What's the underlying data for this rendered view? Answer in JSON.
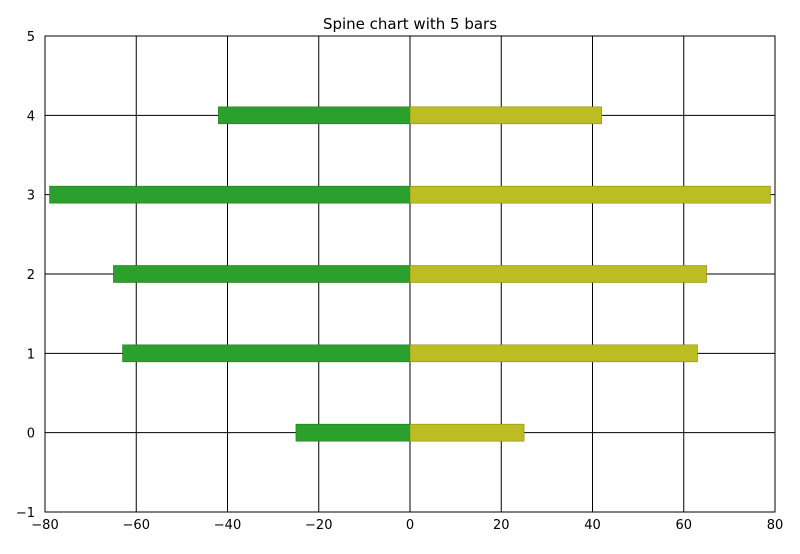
{
  "chart_data": {
    "type": "bar",
    "orientation": "horizontal-diverging",
    "title": "Spine chart with 5 bars",
    "xlabel": "",
    "ylabel": "",
    "xlim": [
      -80,
      80
    ],
    "ylim": [
      -1,
      5
    ],
    "x_ticks": [
      -80,
      -60,
      -40,
      -20,
      0,
      20,
      40,
      60,
      80
    ],
    "x_tick_labels": [
      "−80",
      "−60",
      "−40",
      "−20",
      "0",
      "20",
      "40",
      "60",
      "80"
    ],
    "y_ticks": [
      -1,
      0,
      1,
      2,
      3,
      4,
      5
    ],
    "y_tick_labels": [
      "−1",
      "0",
      "1",
      "2",
      "3",
      "4",
      "5"
    ],
    "grid": true,
    "categories": [
      0,
      1,
      2,
      3,
      4
    ],
    "series": [
      {
        "side": "left",
        "color": "#2ca02c",
        "values": [
          -25,
          -63,
          -65,
          -79,
          -42
        ]
      },
      {
        "side": "right",
        "color": "#bcbd22",
        "values": [
          25,
          63,
          65,
          79,
          42
        ]
      }
    ]
  }
}
